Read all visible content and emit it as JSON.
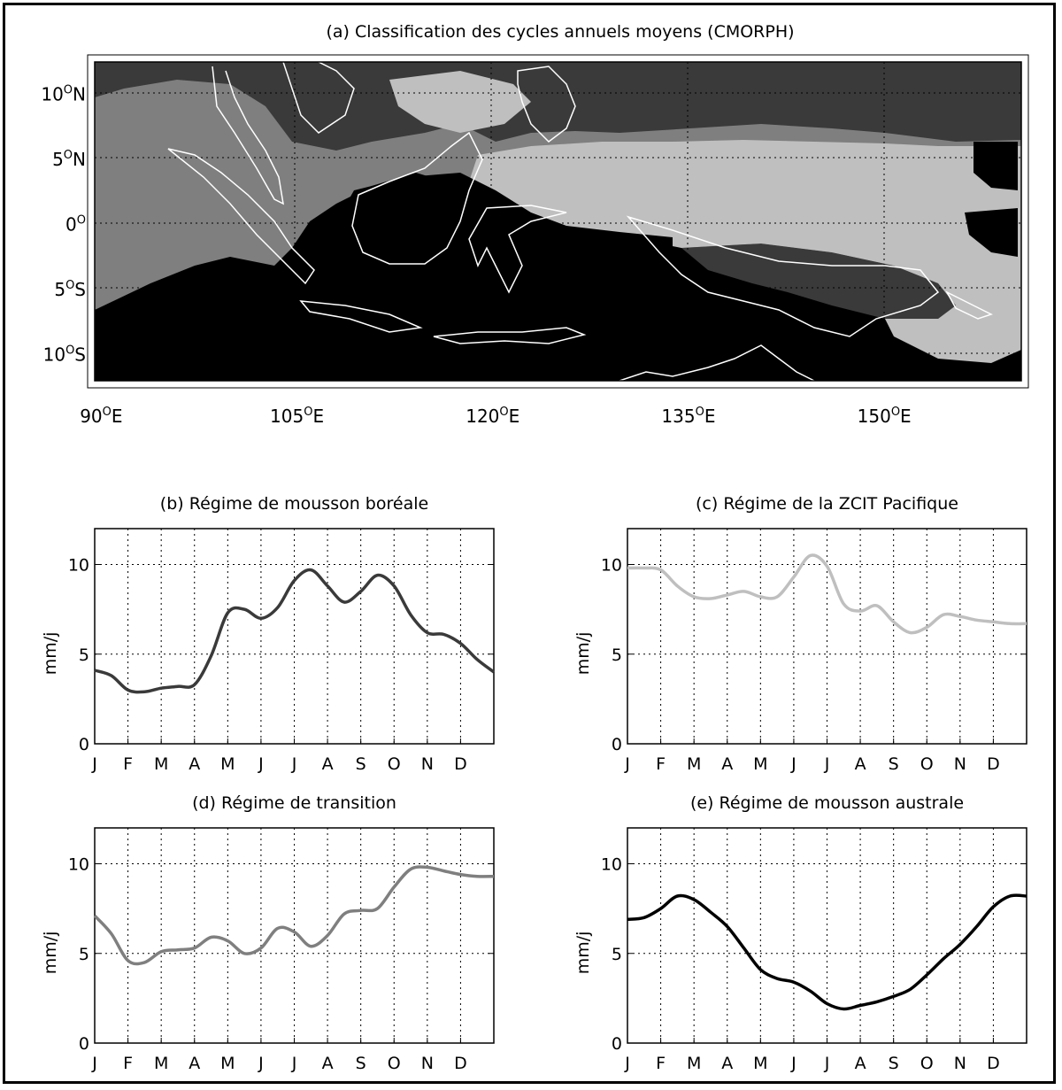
{
  "map": {
    "title": "(a) Classification des cycles annuels moyens (CMORPH)",
    "lon_ticks": [
      {
        "value": 90,
        "num": "90",
        "sup": "O",
        "suffix": "E"
      },
      {
        "value": 105,
        "num": "105",
        "sup": "O",
        "suffix": "E"
      },
      {
        "value": 120,
        "num": "120",
        "sup": "O",
        "suffix": "E"
      },
      {
        "value": 135,
        "num": "135",
        "sup": "O",
        "suffix": "E"
      },
      {
        "value": 150,
        "num": "150",
        "sup": "O",
        "suffix": "E"
      }
    ],
    "lat_ticks": [
      {
        "value": 10,
        "num": "10",
        "sup": "O",
        "suffix": "N"
      },
      {
        "value": 5,
        "num": "5",
        "sup": "O",
        "suffix": "N"
      },
      {
        "value": 0,
        "num": "0",
        "sup": "O",
        "suffix": ""
      },
      {
        "value": -5,
        "num": "5",
        "sup": "O",
        "suffix": "S"
      },
      {
        "value": -10,
        "num": "10",
        "sup": "O",
        "suffix": "S"
      }
    ],
    "lon_range": [
      89.5,
      160.5
    ],
    "lat_range": [
      -12,
      12.5
    ],
    "grid": true,
    "class_colors": {
      "boreal_monsoon": "#3a3a3a",
      "pacific_itcz": "#bfbfbf",
      "transition": "#7f7f7f",
      "austral_monsoon": "#000000",
      "coastline": "#ffffff"
    }
  },
  "chart_data": [
    {
      "type": "line",
      "title": "(b) Régime de mousson boréale",
      "ylabel": "mm/j",
      "xlabel": "",
      "categories": [
        "J",
        "F",
        "M",
        "A",
        "M",
        "J",
        "J",
        "A",
        "S",
        "O",
        "N",
        "D"
      ],
      "x": [
        0,
        0.5,
        1,
        1.5,
        2,
        2.5,
        3,
        3.5,
        4,
        4.5,
        5,
        5.5,
        6,
        6.5,
        7,
        7.5,
        8,
        8.5,
        9,
        9.5,
        10,
        10.5,
        11,
        11.5,
        12
      ],
      "values": [
        4.1,
        3.8,
        3.0,
        2.9,
        3.1,
        3.2,
        3.3,
        4.9,
        7.3,
        7.5,
        7.0,
        7.6,
        9.1,
        9.7,
        8.8,
        7.9,
        8.5,
        9.4,
        8.8,
        7.2,
        6.2,
        6.1,
        5.6,
        4.7,
        4.0
      ],
      "ylim": [
        0,
        12
      ],
      "yticks": [
        0,
        5,
        10
      ],
      "color": "#3a3a3a",
      "grid": true
    },
    {
      "type": "line",
      "title": "(c) Régime de la ZCIT Pacifique",
      "ylabel": "mm/j",
      "xlabel": "",
      "categories": [
        "J",
        "F",
        "M",
        "A",
        "M",
        "J",
        "J",
        "A",
        "S",
        "O",
        "N",
        "D"
      ],
      "x": [
        0,
        0.5,
        1,
        1.5,
        2,
        2.5,
        3,
        3.5,
        4,
        4.5,
        5,
        5.5,
        6,
        6.5,
        7,
        7.5,
        8,
        8.5,
        9,
        9.5,
        10,
        10.5,
        11,
        11.5,
        12
      ],
      "values": [
        9.8,
        9.8,
        9.7,
        8.8,
        8.2,
        8.1,
        8.3,
        8.5,
        8.2,
        8.2,
        9.3,
        10.5,
        9.9,
        7.8,
        7.4,
        7.7,
        6.8,
        6.2,
        6.5,
        7.2,
        7.1,
        6.9,
        6.8,
        6.7,
        6.7
      ],
      "ylim": [
        0,
        12
      ],
      "yticks": [
        0,
        5,
        10
      ],
      "color": "#bfbfbf",
      "grid": true
    },
    {
      "type": "line",
      "title": "(d) Régime de transition",
      "ylabel": "mm/j",
      "xlabel": "",
      "categories": [
        "J",
        "F",
        "M",
        "A",
        "M",
        "J",
        "J",
        "A",
        "S",
        "O",
        "N",
        "D"
      ],
      "x": [
        0,
        0.5,
        1,
        1.5,
        2,
        2.5,
        3,
        3.5,
        4,
        4.5,
        5,
        5.5,
        6,
        6.5,
        7,
        7.5,
        8,
        8.5,
        9,
        9.5,
        10,
        10.5,
        11,
        11.5,
        12
      ],
      "values": [
        7.1,
        6.1,
        4.6,
        4.5,
        5.1,
        5.2,
        5.3,
        5.9,
        5.7,
        5.0,
        5.3,
        6.4,
        6.2,
        5.4,
        6.0,
        7.2,
        7.4,
        7.5,
        8.7,
        9.7,
        9.8,
        9.6,
        9.4,
        9.3,
        9.3
      ],
      "ylim": [
        0,
        12
      ],
      "yticks": [
        0,
        5,
        10
      ],
      "color": "#7f7f7f",
      "grid": true
    },
    {
      "type": "line",
      "title": "(e) Régime de mousson australe",
      "ylabel": "mm/j",
      "xlabel": "",
      "categories": [
        "J",
        "F",
        "M",
        "A",
        "M",
        "J",
        "J",
        "A",
        "S",
        "O",
        "N",
        "D"
      ],
      "x": [
        0,
        0.5,
        1,
        1.5,
        2,
        2.5,
        3,
        3.5,
        4,
        4.5,
        5,
        5.5,
        6,
        6.5,
        7,
        7.5,
        8,
        8.5,
        9,
        9.5,
        10,
        10.5,
        11,
        11.5,
        12
      ],
      "values": [
        6.9,
        7.0,
        7.5,
        8.2,
        8.0,
        7.3,
        6.5,
        5.3,
        4.1,
        3.6,
        3.4,
        2.9,
        2.2,
        1.9,
        2.1,
        2.3,
        2.6,
        3.0,
        3.8,
        4.7,
        5.5,
        6.5,
        7.6,
        8.2,
        8.2
      ],
      "ylim": [
        0,
        12
      ],
      "yticks": [
        0,
        5,
        10
      ],
      "color": "#000000",
      "grid": true
    }
  ]
}
